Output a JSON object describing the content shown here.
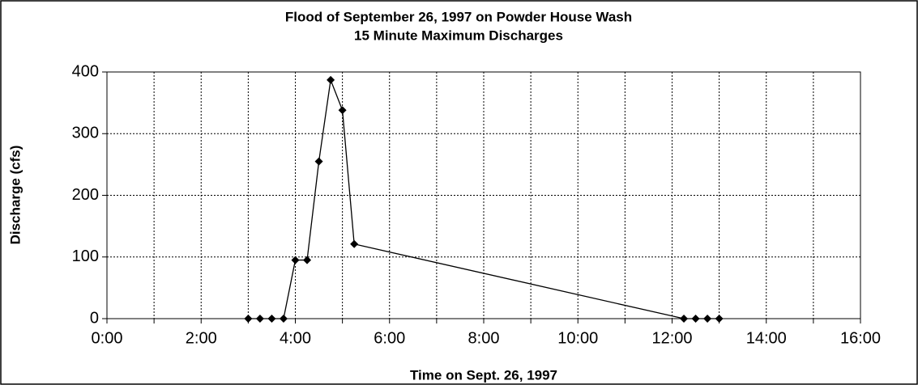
{
  "chart_data": {
    "type": "line",
    "title": "Flood of September 26, 1997 on Powder House Wash",
    "subtitle": "15 Minute Maximum Discharges",
    "x_label": "Time on Sept. 26, 1997",
    "y_label": "Discharge (cfs)",
    "x": [
      3,
      3.25,
      3.5,
      3.75,
      4,
      4.25,
      4.5,
      4.75,
      5,
      5.25,
      12.25,
      12.5,
      12.75,
      13
    ],
    "series": [
      {
        "name": "Discharge",
        "color": "#000000",
        "values": [
          0,
          0,
          0,
          0,
          95,
          95,
          255,
          387,
          338,
          121,
          0,
          0,
          0,
          0
        ]
      }
    ],
    "xlim": [
      0,
      16
    ],
    "xticks": [
      {
        "value": 0,
        "label": "0:00"
      },
      {
        "value": 2,
        "label": "2:00"
      },
      {
        "value": 4,
        "label": "4:00"
      },
      {
        "value": 6,
        "label": "6:00"
      },
      {
        "value": 8,
        "label": "8:00"
      },
      {
        "value": 10,
        "label": "10:00"
      },
      {
        "value": 12,
        "label": "12:00"
      },
      {
        "value": 14,
        "label": "14:00"
      },
      {
        "value": 16,
        "label": "16:00"
      }
    ],
    "xminor": [
      1,
      3,
      5,
      7,
      9,
      11,
      13,
      15
    ],
    "ylim": [
      0,
      400
    ],
    "yticks": [
      0,
      100,
      200,
      300,
      400
    ],
    "grid": true,
    "marker": "diamond"
  }
}
